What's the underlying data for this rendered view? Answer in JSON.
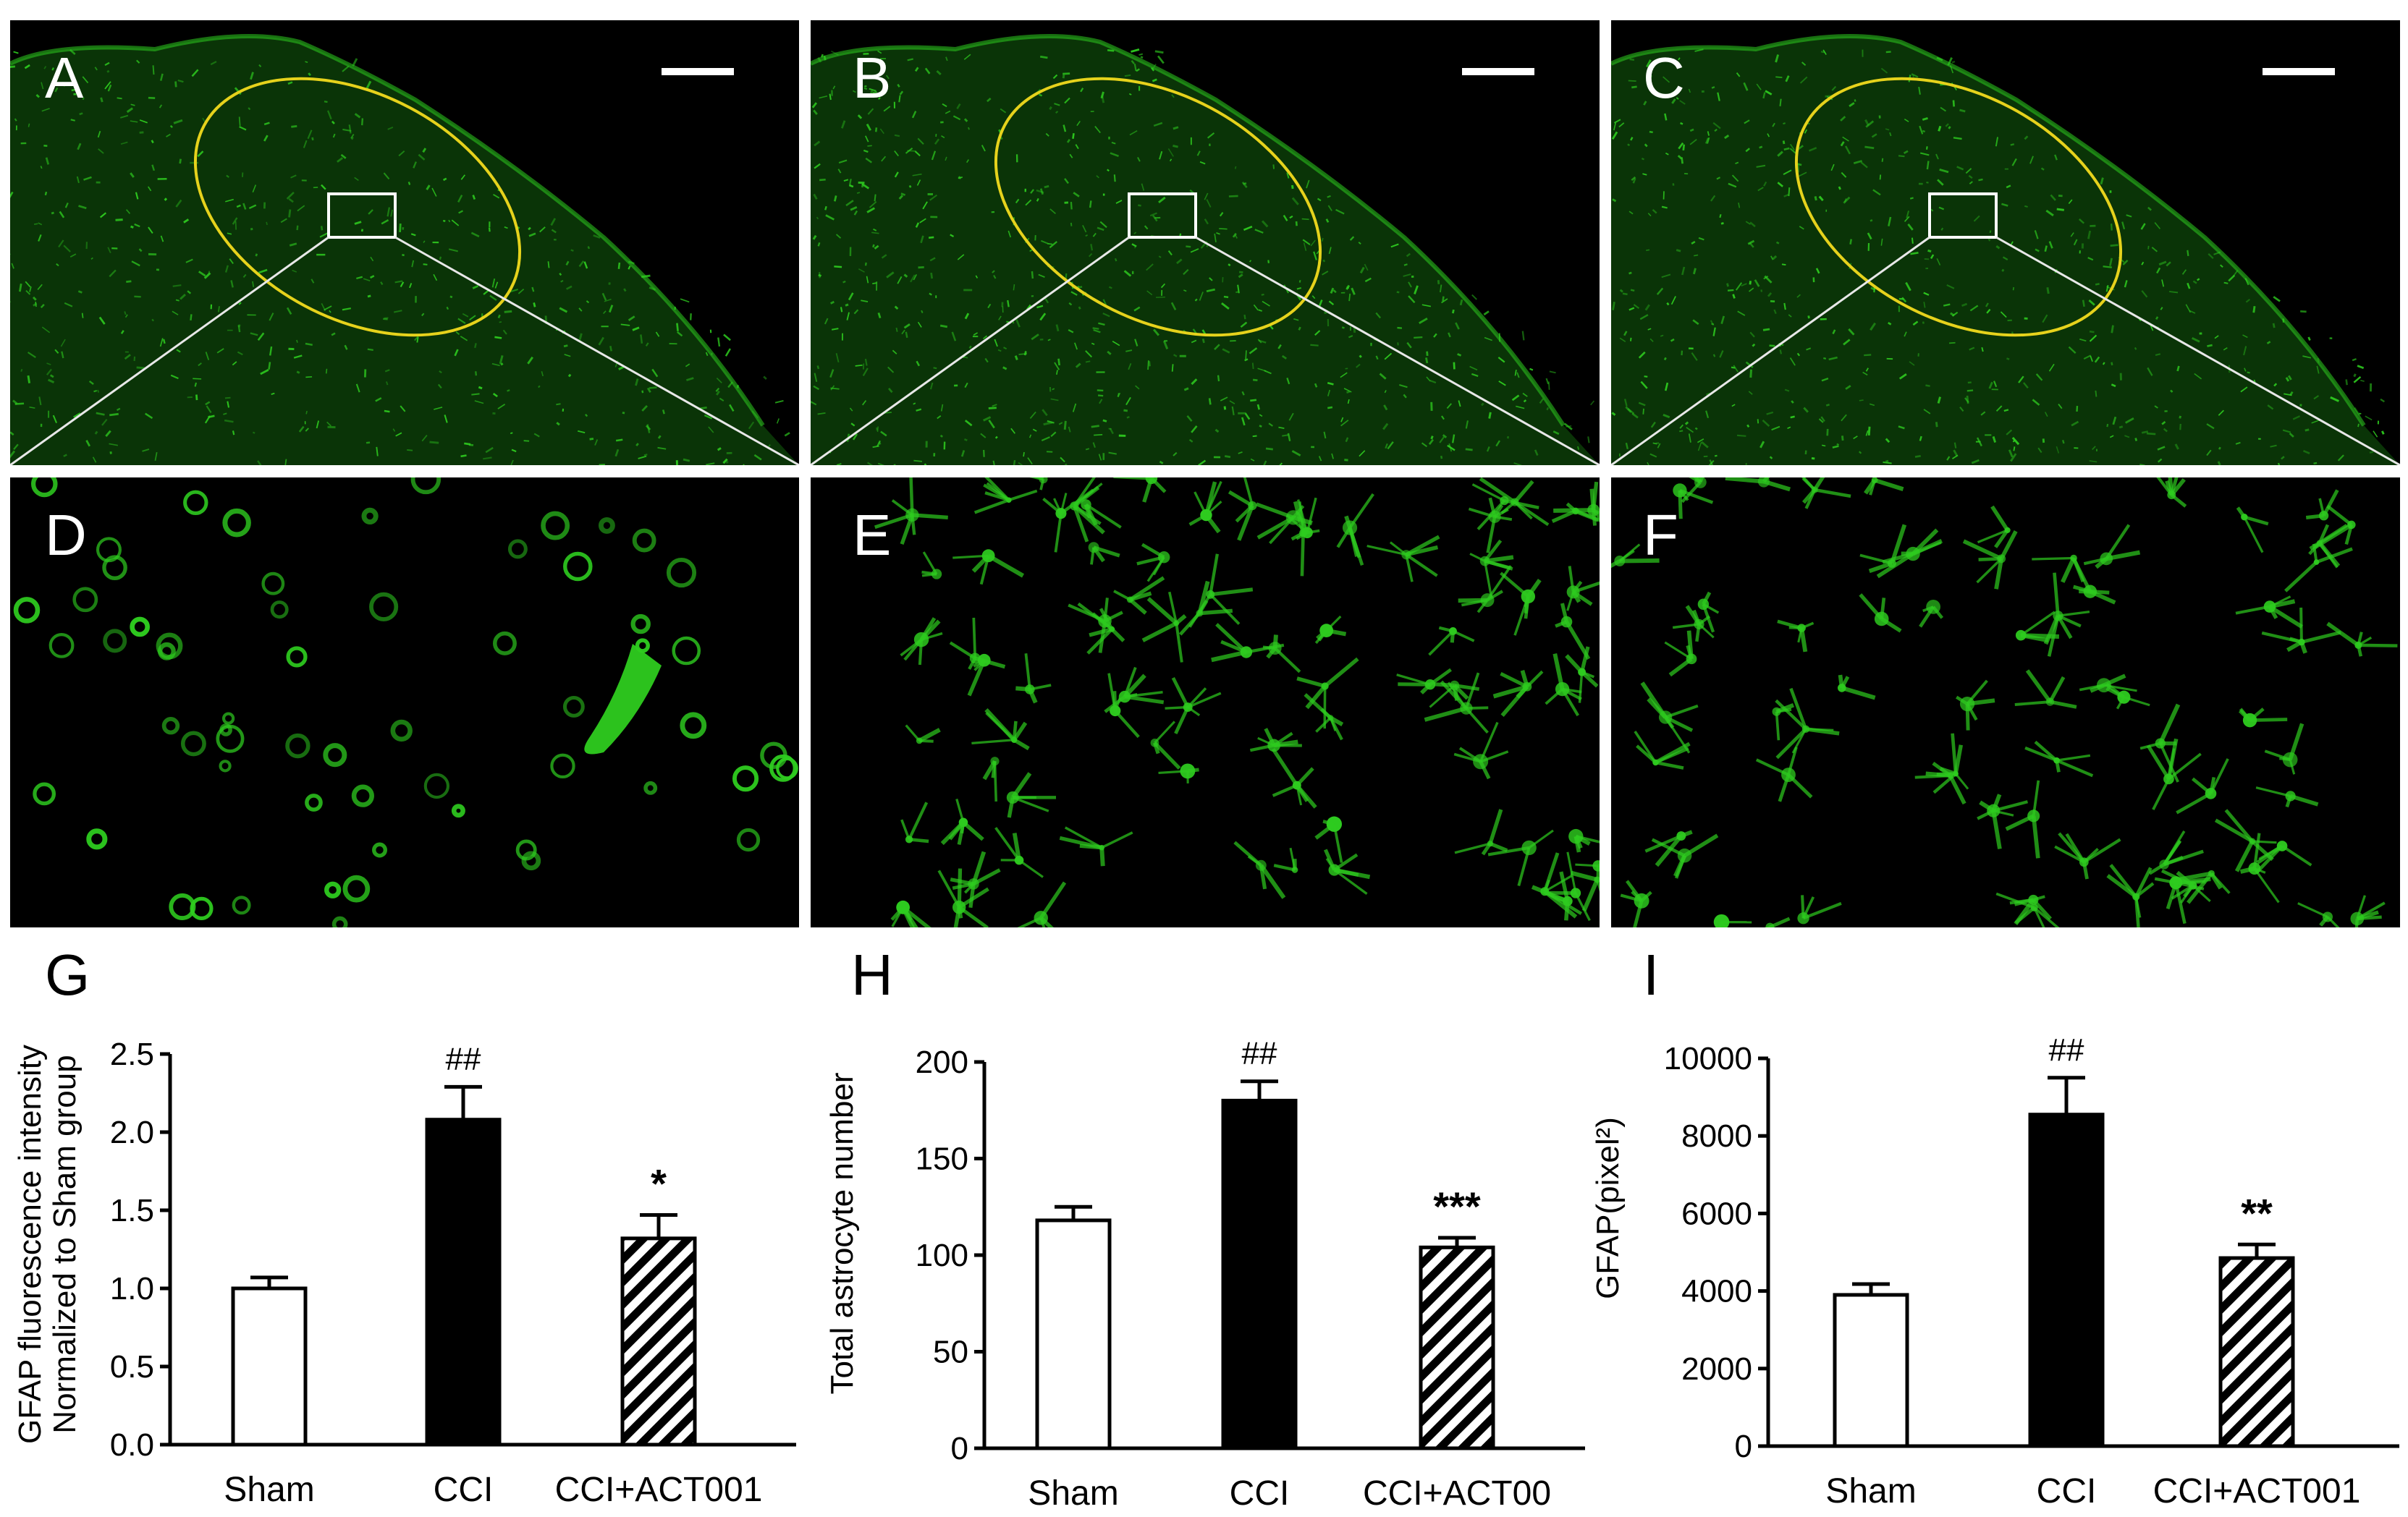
{
  "figure": {
    "micrograph_panels": [
      {
        "id": "A",
        "label": "A",
        "kind": "overview",
        "intensity": 0.35
      },
      {
        "id": "B",
        "label": "B",
        "kind": "overview",
        "intensity": 0.6
      },
      {
        "id": "C",
        "label": "C",
        "kind": "overview",
        "intensity": 0.45
      },
      {
        "id": "D",
        "label": "D",
        "kind": "detail",
        "intensity": 0.35
      },
      {
        "id": "E",
        "label": "E",
        "kind": "detail",
        "intensity": 0.7
      },
      {
        "id": "F",
        "label": "F",
        "kind": "detail",
        "intensity": 0.5
      }
    ],
    "colors": {
      "stain": "#2ecc1f",
      "roi_ellipse": "#e6d21c",
      "zoom_lines": "#e8e8e8",
      "background": "#000000"
    }
  },
  "chart_data": [
    {
      "panel": "G",
      "type": "bar",
      "categories": [
        "Sham",
        "CCI",
        "CCI+ACT001"
      ],
      "values": [
        1.0,
        2.08,
        1.32
      ],
      "errors": [
        0.07,
        0.21,
        0.15
      ],
      "fills": [
        "open",
        "solid",
        "hatched"
      ],
      "significance": [
        "",
        "##",
        "*"
      ],
      "ylabel": [
        "GFAP fluorescence intensity",
        "Normalized to Sham group"
      ],
      "ylim": [
        0,
        2.5
      ],
      "yticks": [
        "0.0",
        "0.5",
        "1.0",
        "1.5",
        "2.0",
        "2.5"
      ]
    },
    {
      "panel": "H",
      "type": "bar",
      "categories": [
        "Sham",
        "CCI",
        "CCI+ACT00"
      ],
      "values": [
        118,
        180,
        104
      ],
      "errors": [
        7,
        10,
        5
      ],
      "fills": [
        "open",
        "solid",
        "hatched"
      ],
      "significance": [
        "",
        "##",
        "***"
      ],
      "ylabel": [
        "Total astrocyte number"
      ],
      "ylim": [
        0,
        200
      ],
      "yticks": [
        "0",
        "50",
        "100",
        "150",
        "200"
      ]
    },
    {
      "panel": "I",
      "type": "bar",
      "categories": [
        "Sham",
        "CCI",
        "CCI+ACT001"
      ],
      "values": [
        3900,
        8550,
        4850
      ],
      "errors": [
        280,
        950,
        350
      ],
      "fills": [
        "open",
        "solid",
        "hatched"
      ],
      "significance": [
        "",
        "##",
        "**"
      ],
      "ylabel": [
        "GFAP(pixel²)"
      ],
      "ylim": [
        0,
        10000
      ],
      "yticks": [
        "0",
        "2000",
        "4000",
        "6000",
        "8000",
        "10000"
      ]
    }
  ]
}
